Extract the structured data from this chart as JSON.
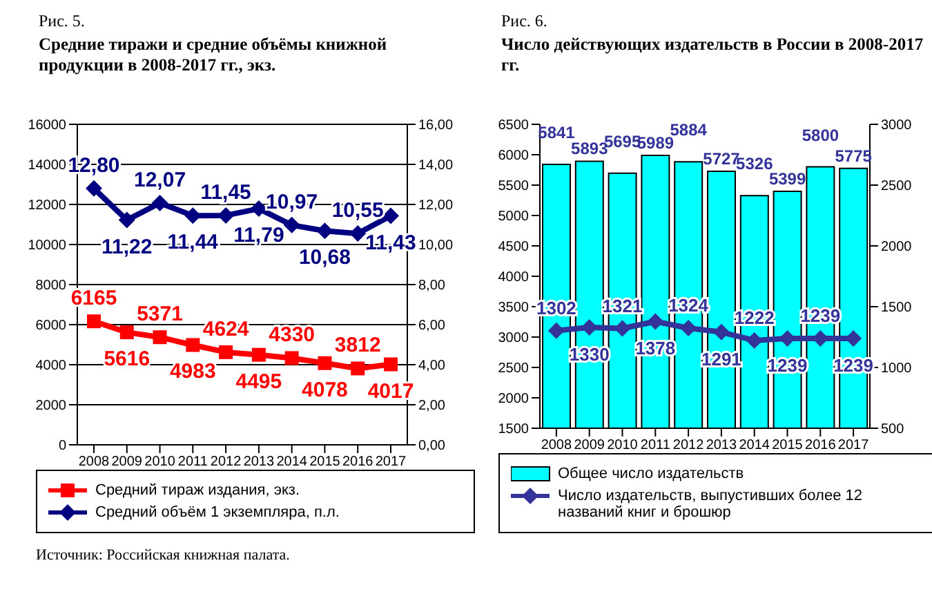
{
  "chart_data": [
    {
      "type": "line",
      "title": "Рис. 5.",
      "subtitle": "Средние тиражи и средние объёмы книжной продукции в 2008-2017 гг., экз.",
      "categories": [
        "2008",
        "2009",
        "2010",
        "2011",
        "2012",
        "2013",
        "2014",
        "2015",
        "2016",
        "2017"
      ],
      "series": [
        {
          "name": "Средний тираж издания, экз.",
          "color": "#ff0000",
          "marker": "square",
          "values": [
            6165,
            5616,
            5371,
            4983,
            4624,
            4495,
            4330,
            4078,
            3812,
            4017
          ],
          "value_labels": [
            "6165",
            "5616",
            "5371",
            "4983",
            "4624",
            "4495",
            "4330",
            "4078",
            "3812",
            "4017"
          ]
        },
        {
          "name": "Средний объём 1 экземпляра, п.л.",
          "color": "#000080",
          "marker": "diamond",
          "axis": "y2",
          "values": [
            12.8,
            11.22,
            12.07,
            11.44,
            11.45,
            11.79,
            10.97,
            10.68,
            10.55,
            11.43
          ],
          "value_labels": [
            "12,80",
            "11,22",
            "12,07",
            "11,44",
            "11,45",
            "11,79",
            "10,97",
            "10,68",
            "10,55",
            "11,43"
          ]
        }
      ],
      "ylim": [
        0,
        16000
      ],
      "yticks": [
        0,
        2000,
        4000,
        6000,
        8000,
        10000,
        12000,
        14000,
        16000
      ],
      "y2lim": [
        0,
        16
      ],
      "y2ticks": [
        {
          "value": 0,
          "label": "0,00"
        },
        {
          "value": 2,
          "label": "2,00"
        },
        {
          "value": 4,
          "label": "4,00"
        },
        {
          "value": 6,
          "label": "6,00"
        },
        {
          "value": 8,
          "label": "8,00"
        },
        {
          "value": 10,
          "label": "10,00"
        },
        {
          "value": 12,
          "label": "12,00"
        },
        {
          "value": 14,
          "label": "14,00"
        },
        {
          "value": 16,
          "label": "16,00"
        }
      ],
      "grid": "y",
      "legend": "bottom",
      "annotations": [
        "Источник: Российская книжная палата."
      ]
    },
    {
      "type": "bar",
      "title": "Рис. 6.",
      "subtitle": "Число действующих издательств в России в 2008-2017 гг.",
      "categories": [
        "2008",
        "2009",
        "2010",
        "2011",
        "2012",
        "2013",
        "2014",
        "2015",
        "2016",
        "2017"
      ],
      "series": [
        {
          "name": "Общее число издательств",
          "color": "#00ffff",
          "values": [
            5841,
            5893,
            5695,
            5989,
            5884,
            5727,
            5326,
            5399,
            5800,
            5775
          ]
        },
        {
          "name": "Число издательств, выпустивших более 12 названий книг и брошюр",
          "type": "line",
          "marker": "diamond",
          "color": "#333399",
          "axis": "y2",
          "values": [
            1302,
            1330,
            1321,
            1378,
            1324,
            1291,
            1222,
            1239,
            1239,
            1239
          ]
        }
      ],
      "ylim": [
        1500,
        6500
      ],
      "yticks": [
        1500,
        2000,
        2500,
        3000,
        3500,
        4000,
        4500,
        5000,
        5500,
        6000,
        6500
      ],
      "y2lim": [
        500,
        3000
      ],
      "y2ticks": [
        500,
        1000,
        1500,
        2000,
        2500,
        3000
      ],
      "data_labels": true,
      "legend": "bottom"
    }
  ]
}
